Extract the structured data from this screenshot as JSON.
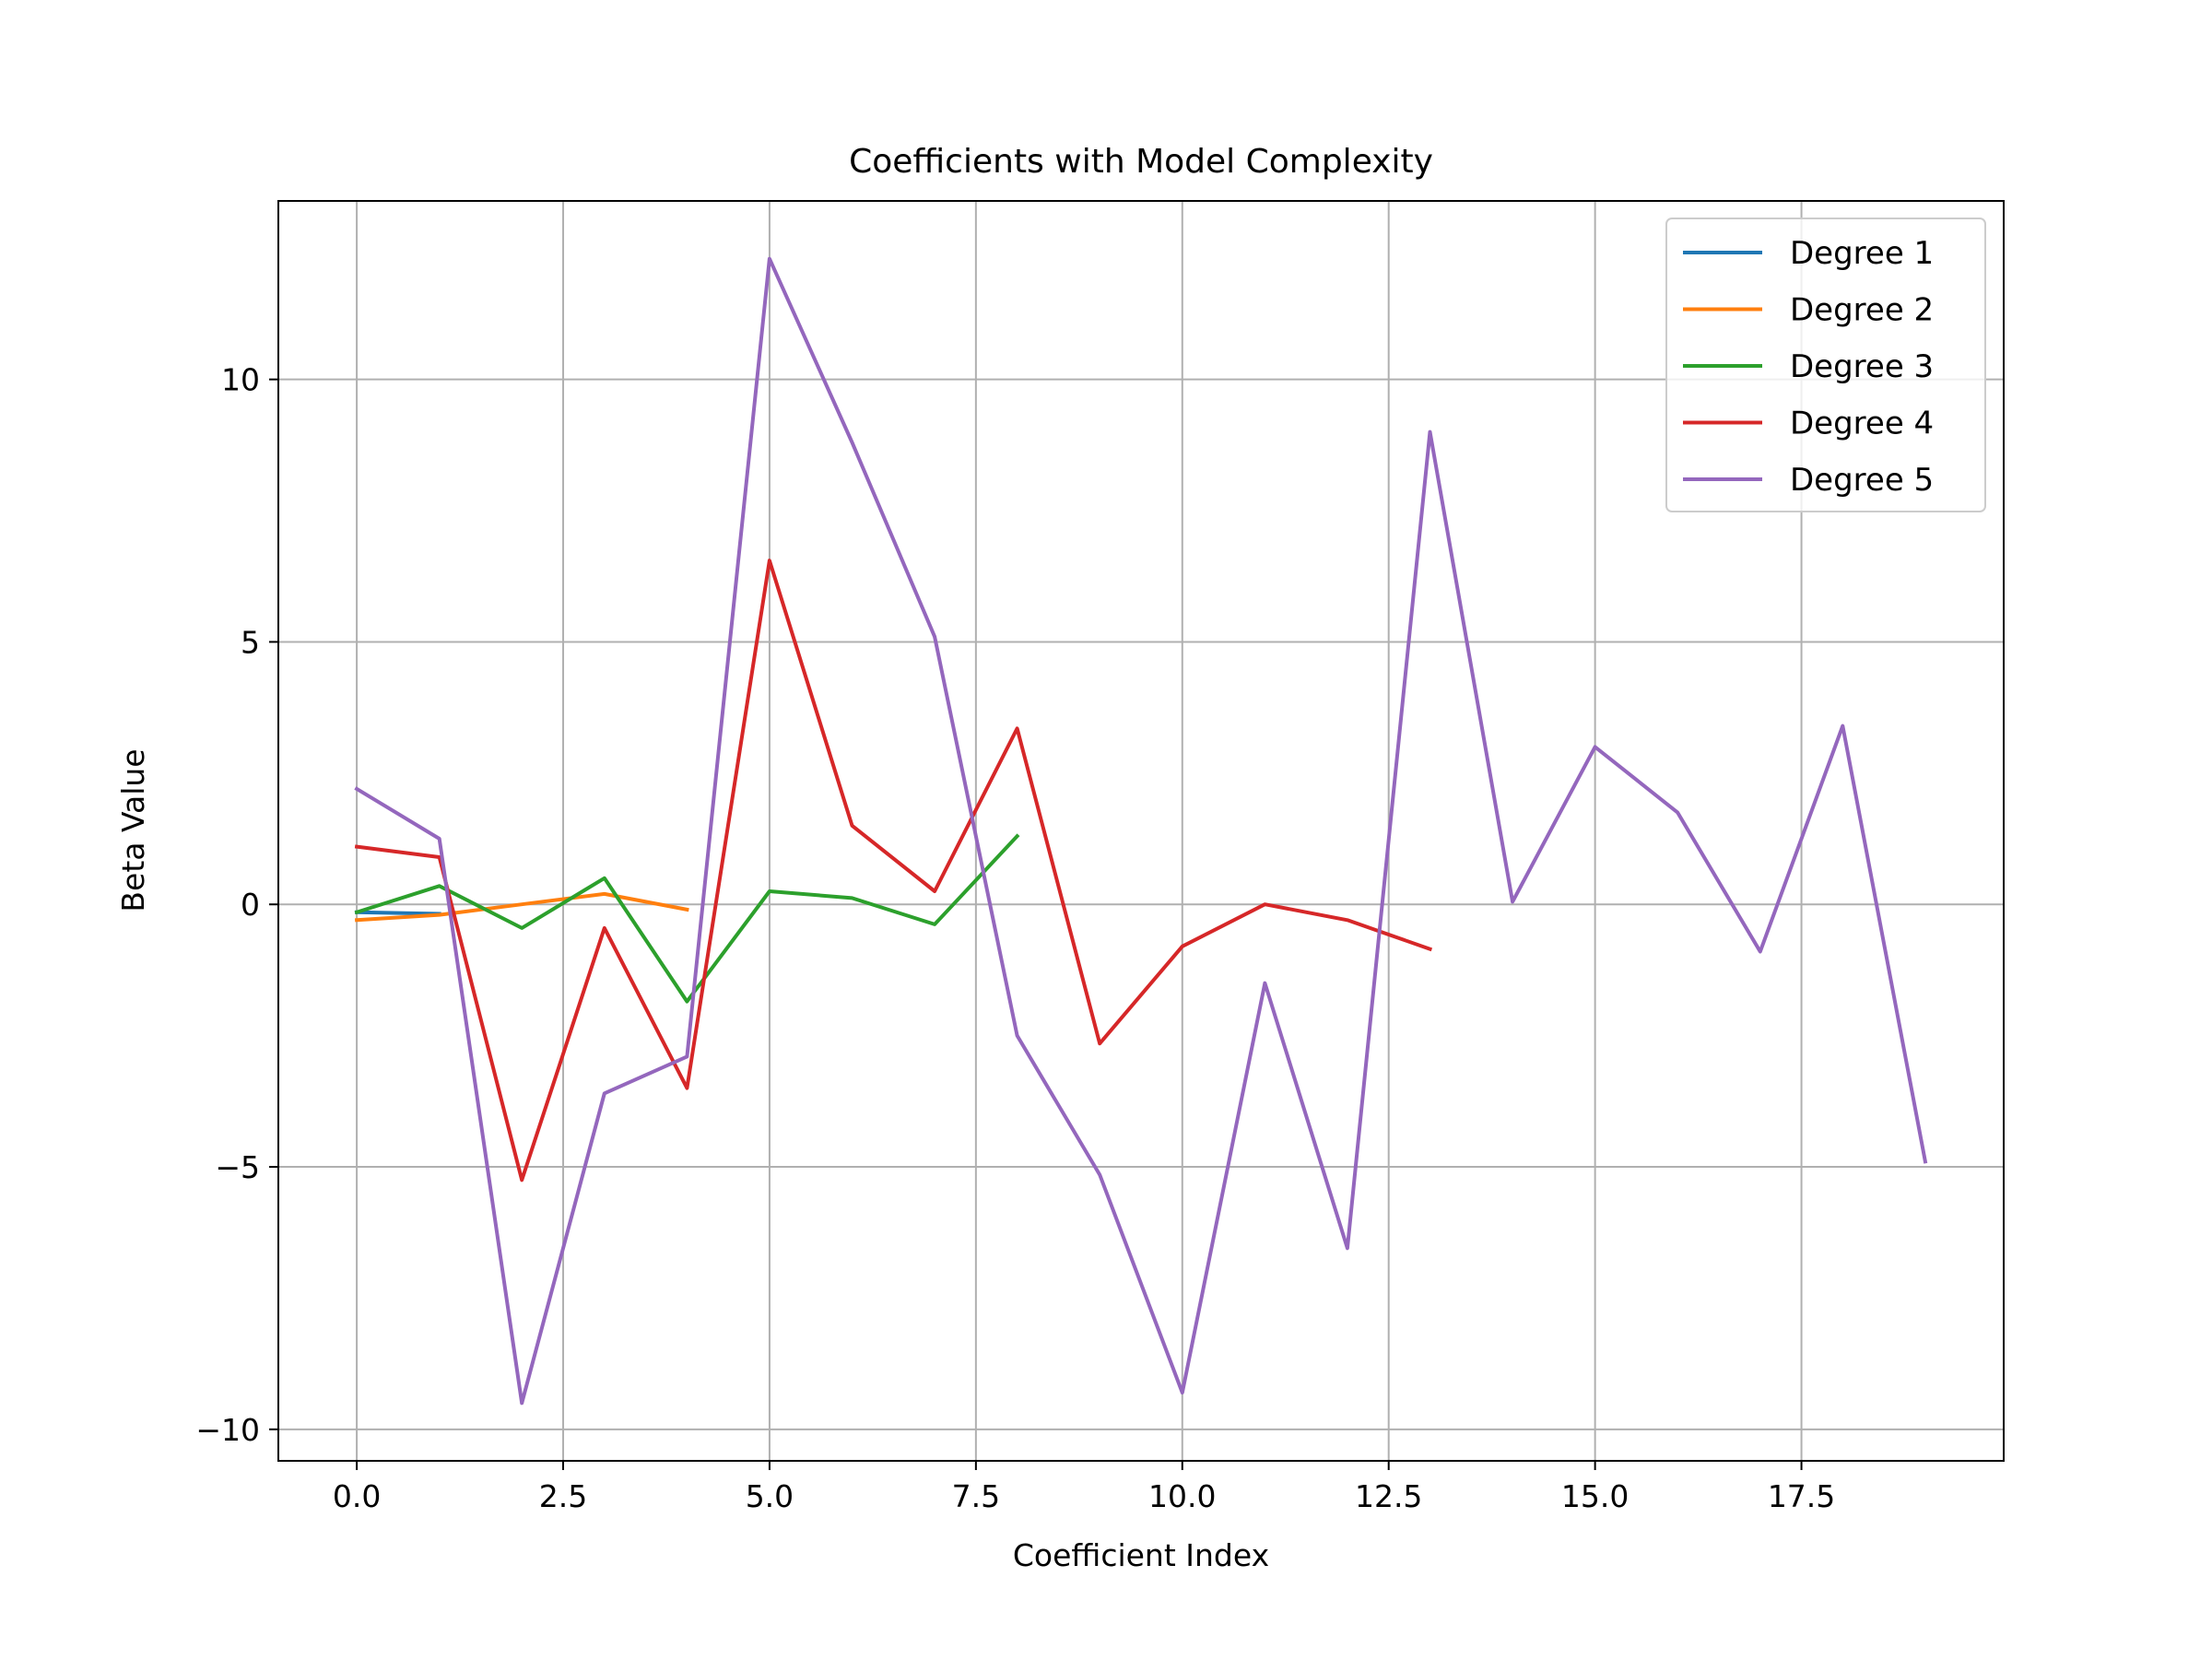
{
  "chart_data": {
    "type": "line",
    "title": "Coefficients with Model Complexity",
    "xlabel": "Coefficient Index",
    "ylabel": "Beta Value",
    "xlim": [
      -0.95,
      19.95
    ],
    "ylim": [
      -10.6,
      13.4
    ],
    "xticks": [
      0.0,
      2.5,
      5.0,
      7.5,
      10.0,
      12.5,
      15.0,
      17.5
    ],
    "xtick_labels": [
      "0.0",
      "2.5",
      "5.0",
      "7.5",
      "10.0",
      "12.5",
      "15.0",
      "17.5"
    ],
    "yticks": [
      -10,
      -5,
      0,
      5,
      10
    ],
    "ytick_labels": [
      "−10",
      "−5",
      "0",
      "5",
      "10"
    ],
    "grid": true,
    "legend_position": "top-right",
    "series": [
      {
        "name": "Degree 1",
        "color": "#1f77b4",
        "x": [
          0,
          1
        ],
        "y": [
          -0.15,
          -0.18
        ]
      },
      {
        "name": "Degree 2",
        "color": "#ff7f0e",
        "x": [
          0,
          1,
          2,
          3,
          4
        ],
        "y": [
          -0.3,
          -0.2,
          0.0,
          0.2,
          -0.1
        ]
      },
      {
        "name": "Degree 3",
        "color": "#2ca02c",
        "x": [
          0,
          1,
          2,
          3,
          4,
          5,
          6,
          7,
          8
        ],
        "y": [
          -0.15,
          0.35,
          -0.45,
          0.5,
          -1.85,
          0.25,
          0.12,
          -0.38,
          1.3
        ]
      },
      {
        "name": "Degree 4",
        "color": "#d62728",
        "x": [
          0,
          1,
          2,
          3,
          4,
          5,
          6,
          7,
          8,
          9,
          10,
          11,
          12,
          13
        ],
        "y": [
          1.1,
          0.9,
          -5.25,
          -0.45,
          -3.5,
          6.55,
          1.5,
          0.25,
          3.35,
          -2.65,
          -0.8,
          0.0,
          -0.3,
          -0.85
        ]
      },
      {
        "name": "Degree 5",
        "color": "#9467bd",
        "x": [
          0,
          1,
          2,
          3,
          4,
          5,
          6,
          7,
          8,
          9,
          10,
          11,
          12,
          13,
          14,
          15,
          16,
          17,
          18,
          19
        ],
        "y": [
          2.2,
          1.25,
          -9.5,
          -3.6,
          -2.9,
          12.3,
          8.8,
          5.1,
          -2.5,
          -5.15,
          -9.3,
          -1.5,
          -6.55,
          9.0,
          0.05,
          3.0,
          1.75,
          -0.9,
          3.4,
          -4.9
        ]
      }
    ]
  }
}
